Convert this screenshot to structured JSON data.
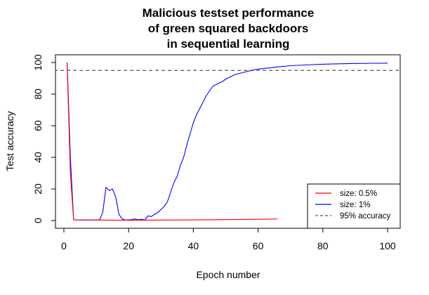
{
  "chart_data": {
    "type": "line",
    "title_lines": [
      "Malicious testset performance",
      "of green squared backdoors",
      "in sequential learning"
    ],
    "xlabel": "Epoch number",
    "ylabel": "Test accuracy",
    "xlim": [
      0,
      100
    ],
    "ylim": [
      0,
      100
    ],
    "xticks": [
      0,
      20,
      40,
      60,
      80,
      100
    ],
    "yticks": [
      0,
      20,
      40,
      60,
      80,
      100
    ],
    "grid": false,
    "legend_position": "bottom-right",
    "series": [
      {
        "name": "size: 0.5%",
        "color": "#ff0000",
        "style": "solid",
        "points": [
          [
            1,
            99
          ],
          [
            2,
            30
          ],
          [
            3,
            0.4
          ],
          [
            10,
            0.3
          ],
          [
            20,
            0.2
          ],
          [
            30,
            0.3
          ],
          [
            40,
            0.4
          ],
          [
            50,
            0.6
          ],
          [
            60,
            0.8
          ],
          [
            66,
            1.0
          ]
        ]
      },
      {
        "name": "size: 1%",
        "color": "#0000ff",
        "style": "solid",
        "points": [
          [
            1,
            100
          ],
          [
            2,
            40
          ],
          [
            3,
            0.5
          ],
          [
            5,
            0.3
          ],
          [
            11,
            0.4
          ],
          [
            12,
            5
          ],
          [
            13,
            21
          ],
          [
            14,
            19
          ],
          [
            15,
            20
          ],
          [
            16,
            15
          ],
          [
            17,
            4
          ],
          [
            18,
            1
          ],
          [
            19,
            0.3
          ],
          [
            20,
            0.4
          ],
          [
            21,
            0.6
          ],
          [
            22,
            1
          ],
          [
            23,
            0.5
          ],
          [
            24,
            0.8
          ],
          [
            25,
            0.3
          ],
          [
            26,
            3
          ],
          [
            27,
            2.5
          ],
          [
            28,
            4
          ],
          [
            29,
            5
          ],
          [
            30,
            7
          ],
          [
            31,
            9
          ],
          [
            32,
            12
          ],
          [
            33,
            18
          ],
          [
            34,
            24
          ],
          [
            35,
            28
          ],
          [
            36,
            35
          ],
          [
            37,
            40
          ],
          [
            38,
            48
          ],
          [
            39,
            55
          ],
          [
            40,
            62
          ],
          [
            41,
            67
          ],
          [
            42,
            71
          ],
          [
            43,
            75
          ],
          [
            44,
            79
          ],
          [
            45,
            82
          ],
          [
            46,
            85
          ],
          [
            47,
            86
          ],
          [
            48,
            87
          ],
          [
            49,
            88
          ],
          [
            50,
            89.5
          ],
          [
            51,
            90.5
          ],
          [
            52,
            91.5
          ],
          [
            53,
            92.5
          ],
          [
            54,
            93
          ],
          [
            55,
            93.5
          ],
          [
            56,
            94
          ],
          [
            57,
            94.5
          ],
          [
            58,
            95
          ],
          [
            59,
            95.5
          ],
          [
            60,
            95.8
          ],
          [
            62,
            96.3
          ],
          [
            64,
            96.7
          ],
          [
            66,
            97.2
          ],
          [
            68,
            97.6
          ],
          [
            70,
            98
          ],
          [
            75,
            98.5
          ],
          [
            80,
            98.9
          ],
          [
            85,
            99.2
          ],
          [
            90,
            99.4
          ],
          [
            95,
            99.5
          ],
          [
            100,
            99.6
          ]
        ]
      },
      {
        "name": "95% accuracy",
        "color": "#555555",
        "style": "dashed",
        "points": [
          [
            -3,
            95
          ],
          [
            104,
            95
          ]
        ]
      }
    ]
  }
}
